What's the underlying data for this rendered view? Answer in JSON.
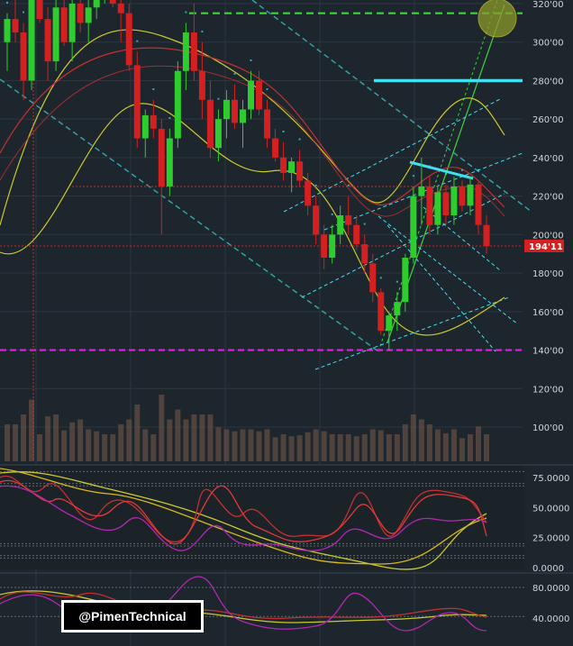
{
  "watermark": "@PimenTechnical",
  "current_price_label": "194'11",
  "colors": {
    "background": "#1e262d",
    "bull_candle": "#2ecc2e",
    "bear_candle": "#d42020",
    "volume": "#7a5a4a",
    "magenta_level": "#e020e0",
    "green_level": "#3ad63a",
    "cyan": "#40e0f0",
    "teal": "#2fa3a3",
    "yellow": "#c9c930",
    "red_line": "#c23030",
    "price_tag": "#d42020"
  },
  "chart_data": [
    {
      "type": "candlestick",
      "ylim": [
        80,
        322
      ],
      "ytick_labels": [
        "320'00",
        "300'00",
        "280'00",
        "260'00",
        "240'00",
        "220'00",
        "200'00",
        "180'00",
        "160'00",
        "140'00",
        "120'00",
        "100'00"
      ],
      "horizontal_levels": [
        {
          "name": "",
          "value": 140,
          "color": "#e020e0",
          "style": "dashed"
        },
        {
          "name": "",
          "value": 315,
          "color": "#3ad63a",
          "style": "dashed"
        },
        {
          "name": "",
          "value": 280,
          "color": "#40e0f0",
          "style": "solid"
        },
        {
          "name": "",
          "value": 194.11,
          "color": "#d42020",
          "style": "dotted"
        },
        {
          "name": "",
          "value": 225,
          "color": "#c23030",
          "style": "dotted"
        }
      ],
      "candles": [
        [
          300,
          315,
          285,
          312
        ],
        [
          312,
          330,
          300,
          305
        ],
        [
          305,
          310,
          270,
          280
        ],
        [
          280,
          330,
          275,
          322
        ],
        [
          322,
          330,
          310,
          312
        ],
        [
          312,
          318,
          280,
          290
        ],
        [
          290,
          325,
          285,
          318
        ],
        [
          318,
          322,
          298,
          300
        ],
        [
          300,
          322,
          290,
          320
        ],
        [
          320,
          340,
          305,
          310
        ],
        [
          310,
          325,
          300,
          318
        ],
        [
          318,
          335,
          312,
          330
        ],
        [
          330,
          340,
          320,
          335
        ],
        [
          335,
          338,
          318,
          320
        ],
        [
          320,
          330,
          300,
          315
        ],
        [
          315,
          320,
          285,
          288
        ],
        [
          288,
          295,
          245,
          250
        ],
        [
          250,
          265,
          240,
          262
        ],
        [
          262,
          270,
          250,
          255
        ],
        [
          255,
          260,
          200,
          225
        ],
        [
          225,
          255,
          220,
          250
        ],
        [
          250,
          290,
          245,
          285
        ],
        [
          285,
          310,
          275,
          305
        ],
        [
          305,
          320,
          280,
          285
        ],
        [
          285,
          300,
          260,
          270
        ],
        [
          270,
          280,
          240,
          245
        ],
        [
          245,
          265,
          238,
          260
        ],
        [
          260,
          275,
          250,
          270
        ],
        [
          270,
          278,
          255,
          258
        ],
        [
          258,
          270,
          245,
          265
        ],
        [
          265,
          285,
          260,
          280
        ],
        [
          280,
          285,
          262,
          265
        ],
        [
          265,
          270,
          245,
          250
        ],
        [
          250,
          255,
          238,
          240
        ],
        [
          240,
          248,
          228,
          232
        ],
        [
          232,
          240,
          222,
          238
        ],
        [
          238,
          244,
          225,
          228
        ],
        [
          228,
          232,
          210,
          215
        ],
        [
          215,
          220,
          195,
          200
        ],
        [
          200,
          205,
          182,
          188
        ],
        [
          188,
          205,
          185,
          200
        ],
        [
          200,
          215,
          195,
          210
        ],
        [
          210,
          220,
          200,
          205
        ],
        [
          205,
          210,
          192,
          195
        ],
        [
          195,
          200,
          180,
          185
        ],
        [
          185,
          190,
          165,
          170
        ],
        [
          170,
          172,
          148,
          150
        ],
        [
          150,
          160,
          140,
          158
        ],
        [
          158,
          170,
          150,
          165
        ],
        [
          165,
          190,
          160,
          188
        ],
        [
          188,
          225,
          185,
          220
        ],
        [
          220,
          240,
          205,
          225
        ],
        [
          225,
          230,
          200,
          205
        ],
        [
          205,
          225,
          200,
          222
        ],
        [
          222,
          226,
          205,
          210
        ],
        [
          210,
          230,
          205,
          225
        ],
        [
          225,
          228,
          212,
          215
        ],
        [
          215,
          230,
          210,
          226
        ],
        [
          226,
          228,
          200,
          205
        ],
        [
          205,
          210,
          190,
          194
        ]
      ]
    },
    {
      "type": "line",
      "name": "stochastic_rsi",
      "ylim": [
        0,
        90
      ],
      "ytick_labels": [
        "75.0000",
        "50.0000",
        "25.0000",
        "0.0000"
      ]
    },
    {
      "type": "line",
      "name": "oscillator",
      "ylim": [
        25,
        90
      ],
      "ytick_labels": [
        "80.0000",
        "40.0000"
      ]
    }
  ]
}
